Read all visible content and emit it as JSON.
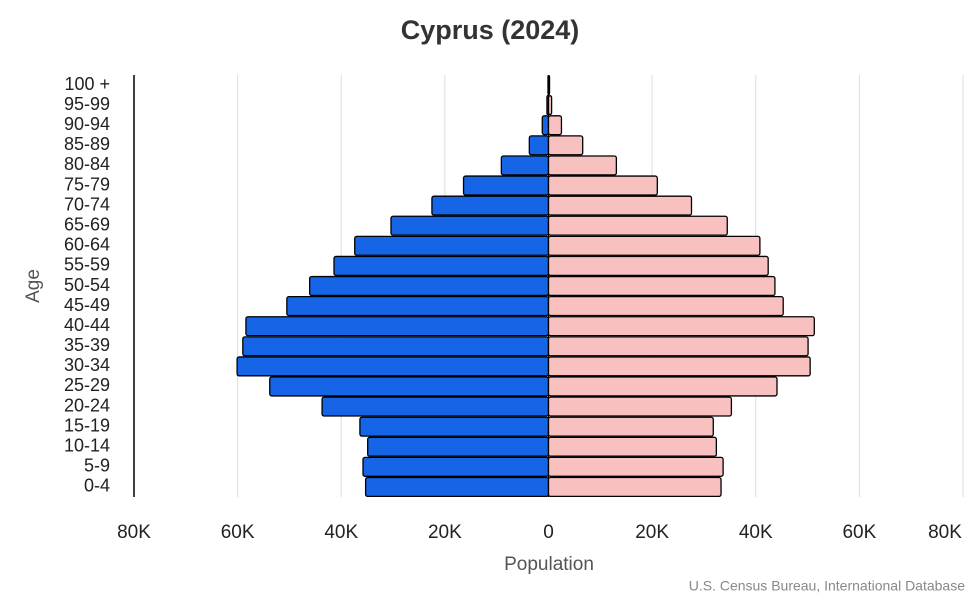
{
  "chart_data": {
    "type": "pyramid",
    "title": "Cyprus (2024)",
    "x_label": "Population",
    "y_label": "Age",
    "source": "U.S. Census Bureau, International Database",
    "categories": [
      "0-4",
      "5-9",
      "10-14",
      "15-19",
      "20-24",
      "25-29",
      "30-34",
      "35-39",
      "40-44",
      "45-49",
      "50-54",
      "55-59",
      "60-64",
      "65-69",
      "70-74",
      "75-79",
      "80-84",
      "85-89",
      "90-94",
      "95-99",
      "100 +"
    ],
    "series": [
      {
        "color": "#1565e6",
        "values": [
          -35300,
          -35800,
          -34900,
          -36400,
          -43700,
          -53800,
          -60100,
          -59000,
          -58400,
          -50500,
          -46100,
          -41400,
          -37400,
          -30400,
          -22500,
          -16400,
          -9100,
          -3700,
          -1200,
          -300,
          -100
        ]
      },
      {
        "color": "#f9c0c0",
        "values": [
          33300,
          33700,
          32400,
          31800,
          35300,
          44100,
          50500,
          50100,
          51300,
          45300,
          43700,
          42400,
          40800,
          34500,
          27600,
          21000,
          13100,
          6600,
          2500,
          600,
          200
        ]
      }
    ],
    "xlim": [
      -80000,
      80000
    ],
    "xticks": [
      {
        "value": -80000,
        "label": "80K"
      },
      {
        "value": -60000,
        "label": "60K"
      },
      {
        "value": -40000,
        "label": "40K"
      },
      {
        "value": -20000,
        "label": "20K"
      },
      0,
      {
        "value": 20000,
        "label": "20K"
      },
      {
        "value": 40000,
        "label": "40K"
      },
      {
        "value": 60000,
        "label": "60K"
      },
      {
        "value": 80000,
        "label": "80K"
      }
    ],
    "grid": true
  }
}
